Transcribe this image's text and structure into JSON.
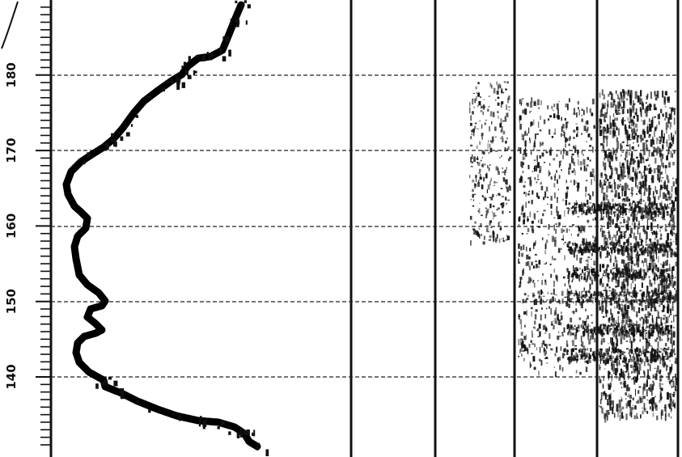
{
  "depth_axis": {
    "tick_labels": [
      "180",
      "170",
      "160",
      "150",
      "140"
    ],
    "range": [
      131,
      189
    ],
    "major_step": 10
  },
  "trace_color": "#000000",
  "paper_color": "#ffffff"
}
